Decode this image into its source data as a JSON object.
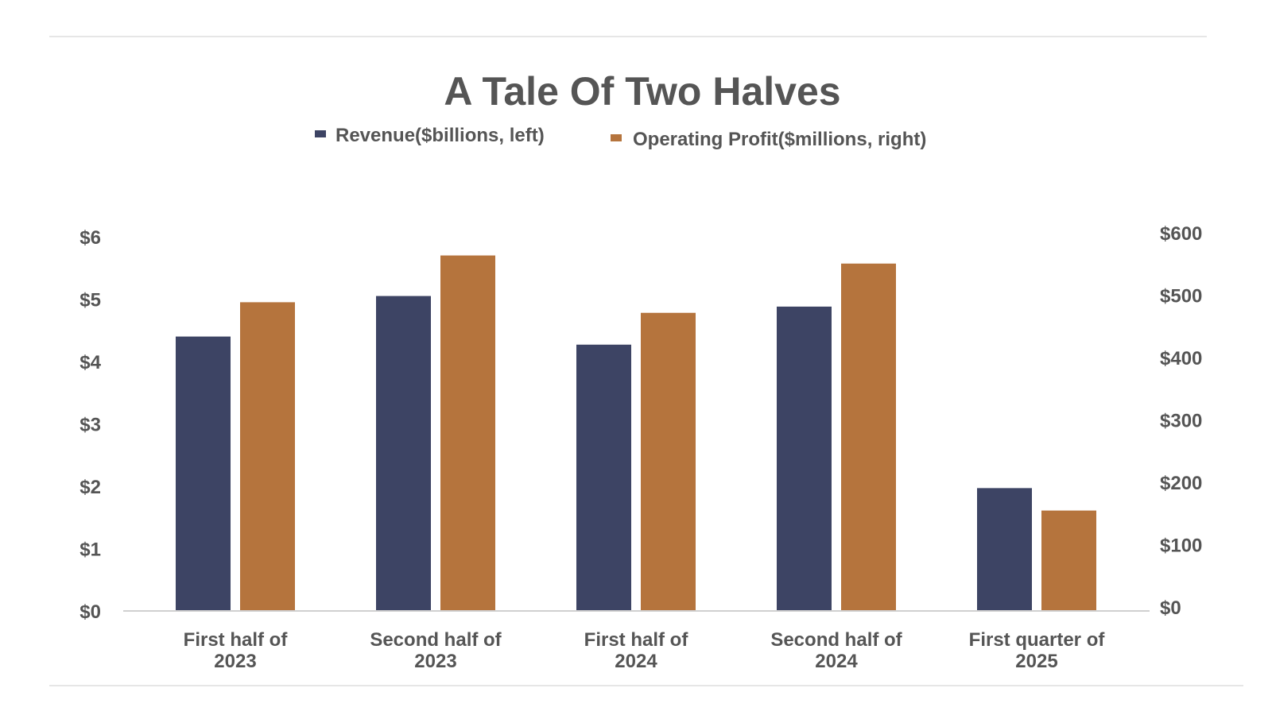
{
  "colors": {
    "revenue": "#3d4464",
    "operating_profit": "#b5743d",
    "text": "#555555",
    "rule": "#cccccc",
    "baseline": "#d0d0d0"
  },
  "chart_data": {
    "type": "bar",
    "title": "A Tale Of Two Halves",
    "categories": [
      [
        "First half of",
        "2023"
      ],
      [
        "Second half of",
        "2023"
      ],
      [
        "First half of",
        "2024"
      ],
      [
        "Second half of",
        "2024"
      ],
      [
        "First quarter of",
        "2025"
      ]
    ],
    "series": [
      {
        "name": "Revenue($billions, left)",
        "axis": "left",
        "color": "#3d4464",
        "values": [
          4.4,
          5.05,
          4.27,
          4.88,
          1.97
        ]
      },
      {
        "name": "Operating Profit($millions, right)",
        "axis": "right",
        "color": "#b5743d",
        "values": [
          495,
          570,
          478,
          557,
          161
        ]
      }
    ],
    "left_axis": {
      "ylim": [
        0,
        6
      ],
      "ticks": [
        "$0",
        "$1",
        "$2",
        "$3",
        "$4",
        "$5",
        "$6"
      ]
    },
    "right_axis": {
      "ylim": [
        0,
        600
      ],
      "ticks": [
        "$0",
        "$100",
        "$200",
        "$300",
        "$400",
        "$500",
        "$600"
      ]
    },
    "legend_position": "top-center",
    "grid": false
  }
}
